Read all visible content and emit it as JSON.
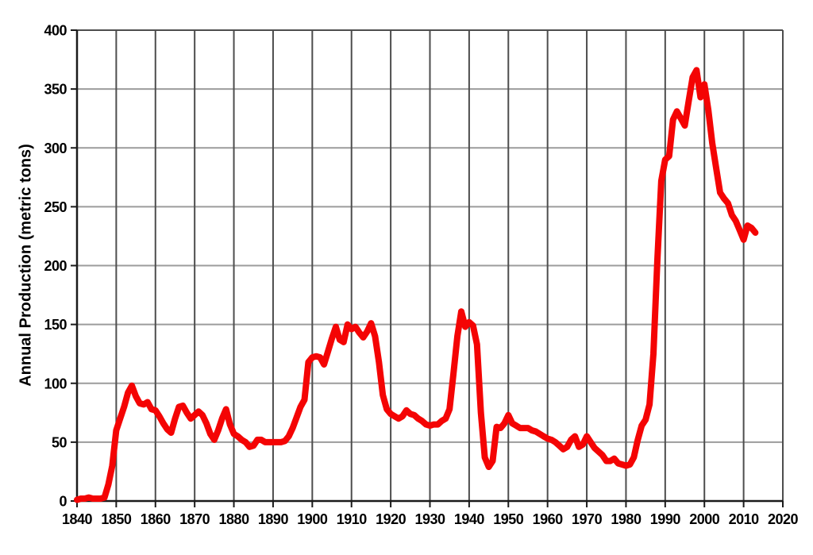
{
  "chart_data": {
    "type": "line",
    "title": "",
    "xlabel": "",
    "ylabel": "Annual Production (metric tons)",
    "xlim": [
      1840,
      2020
    ],
    "ylim": [
      0,
      400
    ],
    "x_ticks": [
      1840,
      1850,
      1860,
      1870,
      1880,
      1890,
      1900,
      1910,
      1920,
      1930,
      1940,
      1950,
      1960,
      1970,
      1980,
      1990,
      2000,
      2010,
      2020
    ],
    "y_ticks": [
      0,
      50,
      100,
      150,
      200,
      250,
      300,
      350,
      400
    ],
    "grid": "both",
    "legend": "none",
    "colors": {
      "line": "#f40404",
      "vgrid": "#4d4d4d",
      "hgrid": "#9c9c9c",
      "axis": "#1a1a1a",
      "label": "#000000",
      "background": "#ffffff"
    },
    "series": [
      {
        "name": "Annual Production",
        "x_start": 1840,
        "x_end": 2013,
        "x_step": 1,
        "values": [
          1,
          2,
          2,
          3,
          2,
          2,
          2,
          3,
          14,
          30,
          60,
          70,
          80,
          92,
          98,
          89,
          83,
          82,
          84,
          78,
          77,
          72,
          66,
          61,
          58,
          70,
          80,
          81,
          75,
          70,
          73,
          76,
          73,
          66,
          57,
          52,
          60,
          70,
          78,
          65,
          57,
          55,
          52,
          50,
          46,
          47,
          52,
          52,
          50,
          50,
          50,
          50,
          50,
          51,
          55,
          62,
          71,
          80,
          86,
          118,
          122,
          123,
          122,
          116,
          127,
          138,
          148,
          137,
          135,
          150,
          146,
          148,
          143,
          139,
          144,
          151,
          140,
          118,
          90,
          78,
          74,
          72,
          70,
          72,
          77,
          74,
          73,
          70,
          68,
          65,
          64,
          65,
          65,
          68,
          70,
          78,
          108,
          140,
          161,
          148,
          152,
          149,
          133,
          75,
          37,
          29,
          34,
          63,
          62,
          66,
          73,
          66,
          64,
          62,
          62,
          62,
          60,
          59,
          57,
          55,
          53,
          52,
          50,
          47,
          44,
          46,
          52,
          55,
          46,
          48,
          55,
          50,
          45,
          42,
          39,
          34,
          34,
          36,
          32,
          31,
          30,
          31,
          37,
          52,
          64,
          69,
          82,
          125,
          205,
          272,
          290,
          293,
          324,
          331,
          325,
          319,
          340,
          360,
          366,
          343,
          354,
          332,
          304,
          283,
          262,
          257,
          253,
          243,
          238,
          230,
          222,
          234,
          232,
          228
        ]
      }
    ]
  }
}
